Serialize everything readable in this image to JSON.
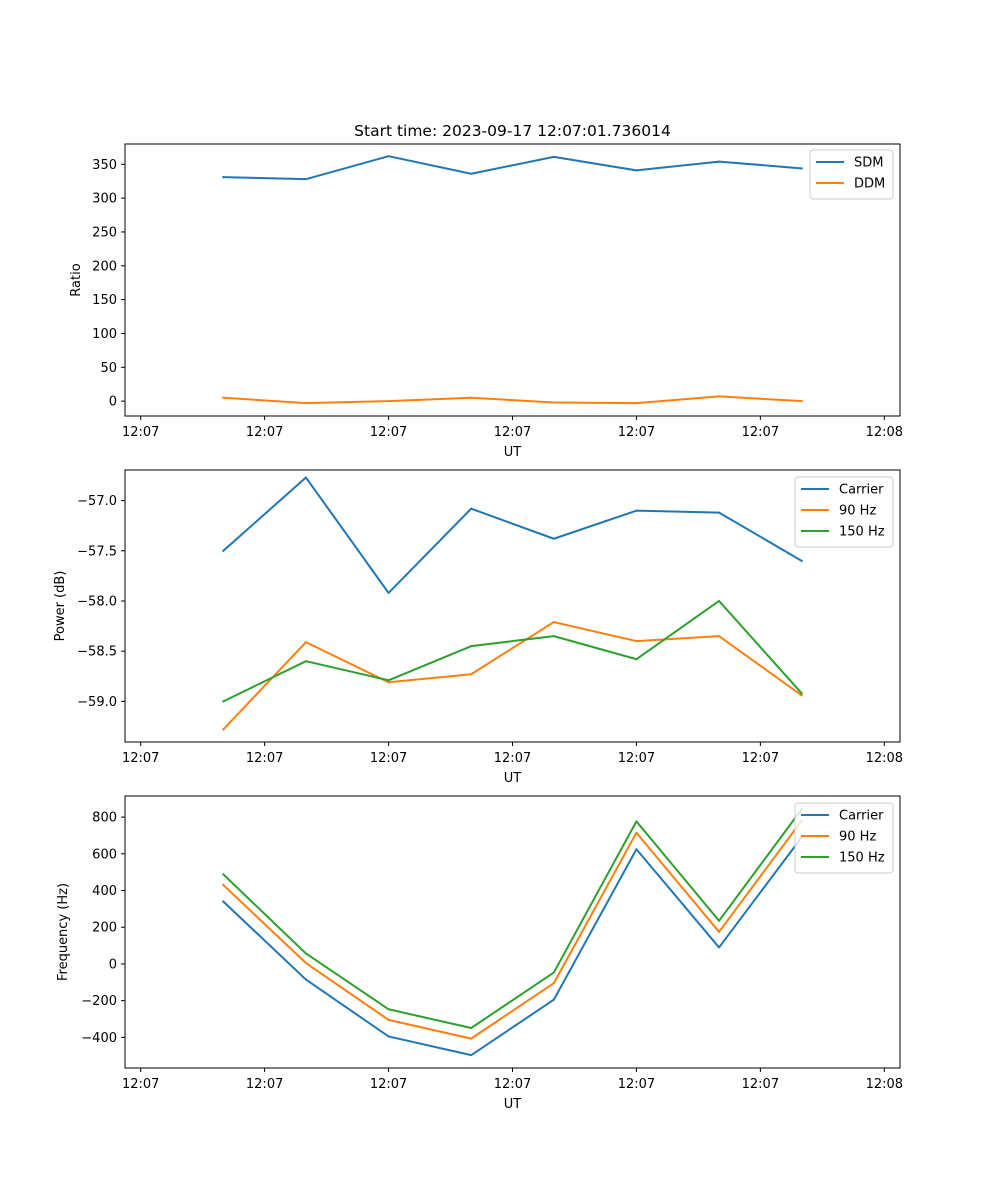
{
  "chart_data": [
    {
      "type": "line",
      "title": "Start time: 2023-09-17 12:07:01.736014",
      "xlabel": "UT",
      "ylabel": "Ratio",
      "xlim": [
        -0.19,
        9.19
      ],
      "ylim": [
        -22,
        380
      ],
      "x": [
        1,
        2,
        3,
        4,
        5,
        6,
        7,
        8
      ],
      "x_ticks": [
        0,
        1.5,
        3,
        4.5,
        6,
        7.5,
        9
      ],
      "x_tick_labels": [
        "12:07",
        "12:07",
        "12:07",
        "12:07",
        "12:07",
        "12:07",
        "12:08"
      ],
      "y_ticks": [
        0,
        50,
        100,
        150,
        200,
        250,
        300,
        350
      ],
      "y_tick_labels": [
        "0",
        "50",
        "100",
        "150",
        "200",
        "250",
        "300",
        "350"
      ],
      "legend_position": "top-right",
      "series": [
        {
          "name": "SDM",
          "color": "#1f77b4",
          "values": [
            331,
            328,
            362,
            336,
            361,
            341,
            354,
            344
          ]
        },
        {
          "name": "DDM",
          "color": "#ff7f0e",
          "values": [
            5,
            -3,
            0,
            5,
            -2,
            -3,
            7,
            0
          ]
        }
      ]
    },
    {
      "type": "line",
      "title": "",
      "xlabel": "UT",
      "ylabel": "Power (dB)",
      "xlim": [
        -0.19,
        9.19
      ],
      "ylim": [
        -59.405,
        -56.695
      ],
      "x": [
        1,
        2,
        3,
        4,
        5,
        6,
        7,
        8
      ],
      "x_ticks": [
        0,
        1.5,
        3,
        4.5,
        6,
        7.5,
        9
      ],
      "x_tick_labels": [
        "12:07",
        "12:07",
        "12:07",
        "12:07",
        "12:07",
        "12:07",
        "12:08"
      ],
      "y_ticks": [
        -59.0,
        -58.5,
        -58.0,
        -57.5,
        -57.0
      ],
      "y_tick_labels": [
        "−59.0",
        "−58.5",
        "−58.0",
        "−57.5",
        "−57.0"
      ],
      "legend_position": "top-right",
      "series": [
        {
          "name": "Carrier",
          "color": "#1f77b4",
          "values": [
            -57.5,
            -56.77,
            -57.92,
            -57.08,
            -57.38,
            -57.1,
            -57.12,
            -57.6
          ]
        },
        {
          "name": "90 Hz",
          "color": "#ff7f0e",
          "values": [
            -59.28,
            -58.41,
            -58.81,
            -58.73,
            -58.21,
            -58.4,
            -58.35,
            -58.94
          ]
        },
        {
          "name": "150 Hz",
          "color": "#2ca02c",
          "values": [
            -59.0,
            -58.6,
            -58.79,
            -58.45,
            -58.35,
            -58.58,
            -58.0,
            -58.92
          ]
        }
      ]
    },
    {
      "type": "line",
      "title": "",
      "xlabel": "UT",
      "ylabel": "Frequency (Hz)",
      "xlim": [
        -0.19,
        9.19
      ],
      "ylim": [
        -567,
        915
      ],
      "x": [
        1,
        2,
        3,
        4,
        5,
        6,
        7,
        8
      ],
      "x_ticks": [
        0,
        1.5,
        3,
        4.5,
        6,
        7.5,
        9
      ],
      "x_tick_labels": [
        "12:07",
        "12:07",
        "12:07",
        "12:07",
        "12:07",
        "12:07",
        "12:08"
      ],
      "y_ticks": [
        -400,
        -200,
        0,
        200,
        400,
        600,
        800
      ],
      "y_tick_labels": [
        "−400",
        "−200",
        "0",
        "200",
        "400",
        "600",
        "800"
      ],
      "legend_position": "top-right",
      "series": [
        {
          "name": "Carrier",
          "color": "#1f77b4",
          "values": [
            340,
            -85,
            -395,
            -497,
            -195,
            625,
            90,
            690
          ]
        },
        {
          "name": "90 Hz",
          "color": "#ff7f0e",
          "values": [
            430,
            5,
            -305,
            -407,
            -105,
            715,
            175,
            780
          ]
        },
        {
          "name": "150 Hz",
          "color": "#2ca02c",
          "values": [
            488,
            57,
            -247,
            -349,
            -47,
            777,
            235,
            843
          ]
        }
      ]
    }
  ]
}
